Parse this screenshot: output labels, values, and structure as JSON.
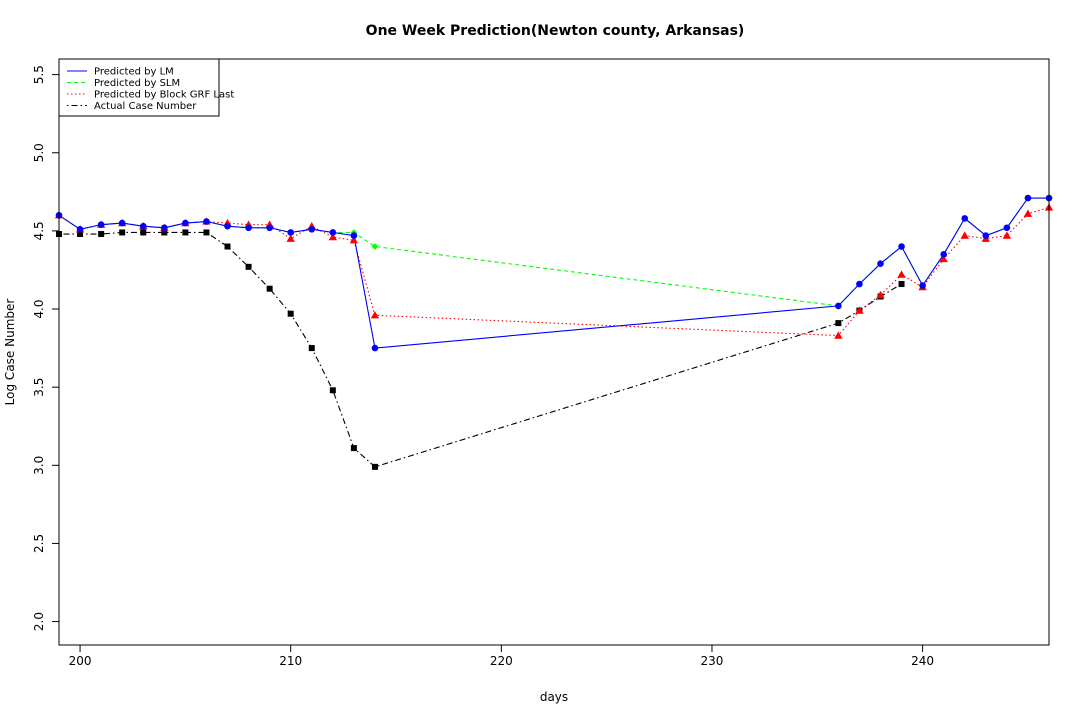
{
  "chart_data": {
    "type": "line",
    "title": "One Week Prediction(Newton county, Arkansas)",
    "xlabel": "days",
    "ylabel": "Log Case Number",
    "xlim": [
      199,
      246
    ],
    "ylim": [
      1.85,
      5.6
    ],
    "x_ticks": [
      200,
      210,
      220,
      230,
      240
    ],
    "y_ticks": [
      2.0,
      2.5,
      3.0,
      3.5,
      4.0,
      4.5,
      5.0,
      5.5
    ],
    "legend_position": "top-left",
    "x": [
      199,
      200,
      201,
      202,
      203,
      204,
      205,
      206,
      207,
      208,
      209,
      210,
      211,
      212,
      213,
      214,
      236,
      237,
      238,
      239,
      240,
      241,
      242,
      243,
      244,
      245,
      246
    ],
    "series": [
      {
        "name": "Predicted by LM",
        "color": "#0000ff",
        "line_style": "solid",
        "marker": "circle",
        "values": [
          4.6,
          4.51,
          4.54,
          4.55,
          4.53,
          4.52,
          4.55,
          4.56,
          4.53,
          4.52,
          4.52,
          4.49,
          4.51,
          4.49,
          4.47,
          3.75,
          4.02,
          4.16,
          4.29,
          4.4,
          4.15,
          4.35,
          4.58,
          4.47,
          4.52,
          4.71,
          4.71
        ]
      },
      {
        "name": "Predicted by SLM",
        "color": "#00ff00",
        "line_style": "dashed",
        "marker": "diamond",
        "values": [
          4.6,
          4.51,
          4.54,
          4.55,
          4.53,
          4.52,
          4.55,
          4.56,
          4.53,
          4.52,
          4.52,
          4.49,
          4.51,
          4.49,
          4.49,
          4.4,
          4.02,
          4.16,
          4.29,
          4.4,
          4.15,
          4.35,
          4.58,
          4.47,
          4.52,
          4.71,
          4.71
        ]
      },
      {
        "name": "Predicted by Block GRF Last",
        "color": "#ff0000",
        "line_style": "dotted",
        "marker": "triangle",
        "values": [
          4.6,
          4.51,
          4.54,
          4.55,
          4.53,
          4.52,
          4.55,
          4.56,
          4.55,
          4.54,
          4.54,
          4.45,
          4.53,
          4.46,
          4.44,
          3.96,
          3.83,
          3.99,
          4.09,
          4.22,
          4.14,
          4.32,
          4.47,
          4.45,
          4.47,
          4.61,
          4.65
        ]
      },
      {
        "name": "Actual Case Number",
        "color": "#000000",
        "line_style": "dotdash",
        "marker": "square",
        "values": [
          4.48,
          4.48,
          4.48,
          4.49,
          4.49,
          4.49,
          4.49,
          4.49,
          4.4,
          4.27,
          4.13,
          3.97,
          3.75,
          3.48,
          3.11,
          2.99,
          3.91,
          3.99,
          4.08,
          4.16,
          null,
          null,
          null,
          null,
          null,
          null,
          null
        ]
      }
    ]
  }
}
